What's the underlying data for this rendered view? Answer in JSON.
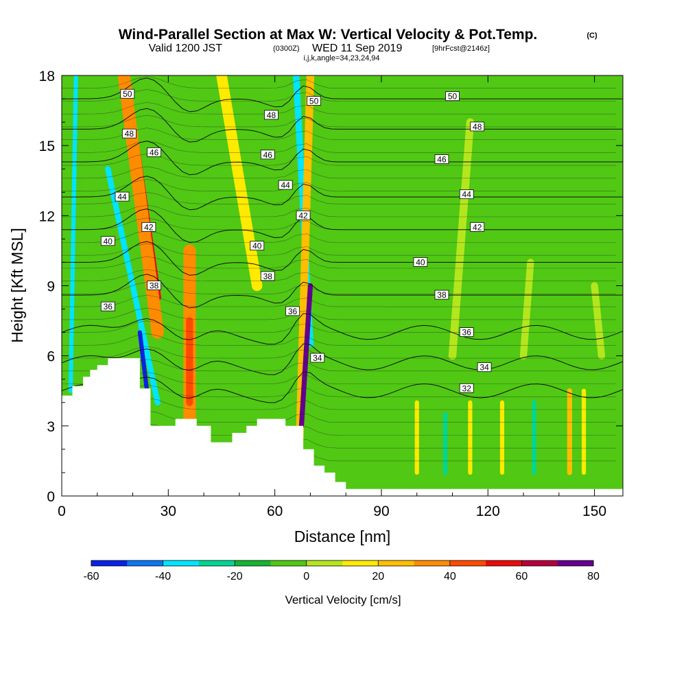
{
  "title": {
    "main": "Wind-Parallel Section at Max W: Vertical Velocity & Pot.Temp.",
    "copyright": "(C)",
    "valid_prefix": "Valid 1200 JST",
    "valid_utc": "(0300Z)",
    "valid_date": "WED 11 Sep 2019",
    "forecast": "[9hrFcst@2146z]",
    "line3": "i,j,k,angle=34,23,24,94"
  },
  "chart_data": {
    "type": "heatmap",
    "xlabel": "Distance [nm]",
    "ylabel": "Height [Kft MSL]",
    "xlim": [
      0,
      158
    ],
    "ylim": [
      0,
      18
    ],
    "x_ticks": [
      0,
      30,
      60,
      90,
      120,
      150
    ],
    "x_tick_labels": [
      "0",
      "30",
      "60",
      "90",
      "120",
      "150"
    ],
    "y_ticks": [
      0,
      3,
      6,
      9,
      12,
      15,
      18
    ],
    "y_tick_labels": [
      "0",
      "3",
      "6",
      "9",
      "12",
      "15",
      "18"
    ],
    "colorbar": {
      "title": "Vertical Velocity [cm/s]",
      "bounds": [
        -60,
        -50,
        -40,
        -30,
        -20,
        -10,
        0,
        10,
        20,
        30,
        40,
        50,
        60,
        70,
        80
      ],
      "tick_values": [
        -60,
        -40,
        -20,
        0,
        20,
        40,
        60,
        80
      ],
      "tick_labels": [
        "-60",
        "-40",
        "-20",
        "0",
        "20",
        "40",
        "60",
        "80"
      ],
      "colors": [
        "#0a22e6",
        "#0a78f0",
        "#00e5ff",
        "#00d696",
        "#14b432",
        "#50c814",
        "#b4e61e",
        "#ffea00",
        "#ffbe00",
        "#ff8c00",
        "#ff4b00",
        "#eb0a0a",
        "#b4003c",
        "#64008c"
      ]
    },
    "background_value": -5,
    "terrain_kft": [
      [
        0,
        4.3
      ],
      [
        3,
        4.3
      ],
      [
        3,
        4.7
      ],
      [
        6,
        4.7
      ],
      [
        6,
        5.1
      ],
      [
        8,
        5.1
      ],
      [
        8,
        5.4
      ],
      [
        10,
        5.4
      ],
      [
        10,
        5.6
      ],
      [
        13,
        5.6
      ],
      [
        13,
        5.9
      ],
      [
        19,
        5.9
      ],
      [
        19,
        5.9
      ],
      [
        22,
        5.9
      ],
      [
        22,
        4.6
      ],
      [
        25,
        4.6
      ],
      [
        25,
        3.0
      ],
      [
        32,
        3.0
      ],
      [
        32,
        3.3
      ],
      [
        38,
        3.3
      ],
      [
        38,
        3.0
      ],
      [
        42,
        3.0
      ],
      [
        42,
        2.3
      ],
      [
        48,
        2.3
      ],
      [
        48,
        2.7
      ],
      [
        52,
        2.7
      ],
      [
        52,
        3.0
      ],
      [
        55,
        3.0
      ],
      [
        55,
        3.3
      ],
      [
        63,
        3.3
      ],
      [
        63,
        3.0
      ],
      [
        68,
        3.0
      ],
      [
        68,
        2.0
      ],
      [
        71,
        2.0
      ],
      [
        71,
        1.3
      ],
      [
        74,
        1.3
      ],
      [
        74,
        1.0
      ],
      [
        77,
        1.0
      ],
      [
        77,
        0.6
      ],
      [
        80,
        0.6
      ],
      [
        80,
        0.3
      ],
      [
        158,
        0.3
      ]
    ],
    "features": [
      {
        "name": "cyan-ribbon-west",
        "x0": 2.5,
        "y0": 4.5,
        "x1": 4.0,
        "y1": 18,
        "w": 1.2,
        "value": -32
      },
      {
        "name": "strong-updraft-left",
        "x0": 18,
        "y0": 18,
        "x1": 27,
        "y1": 8.5,
        "w": 2.0,
        "value": 58
      },
      {
        "name": "updraft-left-fringe",
        "x0": 17.5,
        "y0": 18,
        "x1": 27,
        "y1": 7.0,
        "w": 3.5,
        "value": 33
      },
      {
        "name": "downdraft-left",
        "x0": 13,
        "y0": 14,
        "x1": 27,
        "y1": 4.0,
        "w": 1.6,
        "value": -32
      },
      {
        "name": "downdraft-left-core",
        "x0": 22,
        "y0": 7.0,
        "x1": 24,
        "y1": 4.5,
        "w": 1.2,
        "value": -55
      },
      {
        "name": "updraft-bulge",
        "x0": 36,
        "y0": 10.5,
        "x1": 36,
        "y1": 2.5,
        "w": 3.5,
        "value": 35
      },
      {
        "name": "updraft-bulge-core",
        "x0": 36,
        "y0": 7.5,
        "x1": 36,
        "y1": 4.0,
        "w": 2.0,
        "value": 42
      },
      {
        "name": "downdraft-right",
        "x0": 66,
        "y0": 18,
        "x1": 70,
        "y1": 6.5,
        "w": 1.8,
        "value": -32
      },
      {
        "name": "strong-updraft-right",
        "x0": 70,
        "y0": 18,
        "x1": 67,
        "y1": 2.5,
        "w": 2.2,
        "value": 22
      },
      {
        "name": "updraft-right-core",
        "x0": 70,
        "y0": 9.0,
        "x1": 67.5,
        "y1": 3.0,
        "w": 1.4,
        "value": 76
      },
      {
        "name": "yellow-band-mid",
        "x0": 45,
        "y0": 18,
        "x1": 55,
        "y1": 9,
        "w": 3.0,
        "value": 12
      },
      {
        "name": "yellow-band-east1",
        "x0": 115,
        "y0": 16,
        "x1": 110,
        "y1": 6,
        "w": 2.2,
        "value": 8
      },
      {
        "name": "yellow-band-east2",
        "x0": 132,
        "y0": 10,
        "x1": 130,
        "y1": 6,
        "w": 2.0,
        "value": 8
      },
      {
        "name": "yellow-band-east3",
        "x0": 150,
        "y0": 9,
        "x1": 152,
        "y1": 6,
        "w": 2.0,
        "value": 8
      },
      {
        "name": "low-cell-1",
        "x0": 100,
        "y0": 4,
        "x1": 100,
        "y1": 1,
        "w": 1.2,
        "value": 18
      },
      {
        "name": "low-cell-2",
        "x0": 108,
        "y0": 3.5,
        "x1": 108,
        "y1": 1,
        "w": 1.2,
        "value": -25
      },
      {
        "name": "low-cell-3",
        "x0": 115,
        "y0": 4,
        "x1": 115,
        "y1": 1,
        "w": 1.2,
        "value": 14
      },
      {
        "name": "low-cell-4",
        "x0": 124,
        "y0": 4,
        "x1": 124,
        "y1": 1,
        "w": 1.2,
        "value": 13
      },
      {
        "name": "low-cell-5",
        "x0": 133,
        "y0": 4,
        "x1": 133,
        "y1": 1,
        "w": 1.2,
        "value": -22
      },
      {
        "name": "low-cell-6",
        "x0": 143,
        "y0": 4.5,
        "x1": 143,
        "y1": 1,
        "w": 1.4,
        "value": 22
      },
      {
        "name": "low-cell-7",
        "x0": 147,
        "y0": 4.5,
        "x1": 147,
        "y1": 1,
        "w": 1.2,
        "value": 18
      }
    ],
    "isentropes": {
      "levels": [
        32,
        34,
        36,
        38,
        40,
        42,
        44,
        46,
        48,
        50
      ],
      "east_heights_kft": [
        4.5,
        5.7,
        7.0,
        8.6,
        10.0,
        11.4,
        12.8,
        14.3,
        15.7,
        17.0
      ],
      "labels": [
        {
          "text": "50",
          "x": 18.5,
          "y": 17.2
        },
        {
          "text": "48",
          "x": 19,
          "y": 15.5
        },
        {
          "text": "46",
          "x": 26,
          "y": 14.7
        },
        {
          "text": "44",
          "x": 17,
          "y": 12.8
        },
        {
          "text": "42",
          "x": 24.5,
          "y": 11.5
        },
        {
          "text": "40",
          "x": 13,
          "y": 10.9
        },
        {
          "text": "38",
          "x": 26,
          "y": 9.0
        },
        {
          "text": "36",
          "x": 13,
          "y": 8.1
        },
        {
          "text": "50",
          "x": 71,
          "y": 16.9
        },
        {
          "text": "48",
          "x": 59,
          "y": 16.3
        },
        {
          "text": "46",
          "x": 58,
          "y": 14.6
        },
        {
          "text": "44",
          "x": 63,
          "y": 13.3
        },
        {
          "text": "42",
          "x": 68,
          "y": 12.0
        },
        {
          "text": "40",
          "x": 55,
          "y": 10.7
        },
        {
          "text": "38",
          "x": 58,
          "y": 9.4
        },
        {
          "text": "36",
          "x": 65,
          "y": 7.9
        },
        {
          "text": "34",
          "x": 72,
          "y": 5.9
        },
        {
          "text": "50",
          "x": 110,
          "y": 17.1
        },
        {
          "text": "48",
          "x": 117,
          "y": 15.8
        },
        {
          "text": "46",
          "x": 107,
          "y": 14.4
        },
        {
          "text": "44",
          "x": 114,
          "y": 12.9
        },
        {
          "text": "42",
          "x": 117,
          "y": 11.5
        },
        {
          "text": "40",
          "x": 101,
          "y": 10.0
        },
        {
          "text": "38",
          "x": 107,
          "y": 8.6
        },
        {
          "text": "36",
          "x": 114,
          "y": 7.0
        },
        {
          "text": "34",
          "x": 119,
          "y": 5.5
        },
        {
          "text": "32",
          "x": 114,
          "y": 4.6
        }
      ]
    }
  }
}
